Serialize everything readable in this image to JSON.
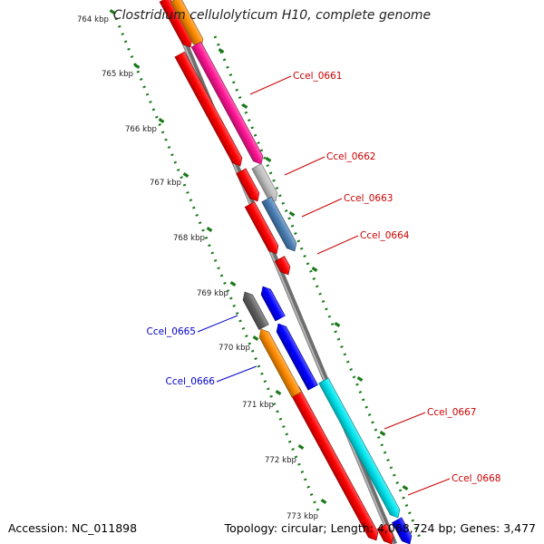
{
  "title": "Clostridium cellulolyticum H10, complete genome",
  "footer": {
    "accession": "Accession: NC_011898",
    "summary": "Topology: circular; Length: 4,068,724 bp; Genes: 3,477"
  },
  "colors": {
    "backbone": "#8a8a8a",
    "tick": "#1a7a1a",
    "label_forward": "#cc0000",
    "label_reverse": "#0000cc"
  },
  "ruler_labels": [
    "764 kbp",
    "765 kbp",
    "766 kbp",
    "767 kbp",
    "768 kbp",
    "769 kbp",
    "770 kbp",
    "771 kbp",
    "772 kbp",
    "773 kbp"
  ],
  "genes": [
    {
      "name": "Ccel_0661",
      "strand": "forward",
      "color": "#ff1493"
    },
    {
      "name": "Ccel_0662",
      "strand": "forward",
      "color": "#c0c0c0"
    },
    {
      "name": "Ccel_0663",
      "strand": "forward",
      "color": "#4a7fb5"
    },
    {
      "name": "Ccel_0664",
      "strand": "forward",
      "color": "#ff0000"
    },
    {
      "name": "Ccel_0665",
      "strand": "reverse",
      "color": "#606060"
    },
    {
      "name": "Ccel_0666",
      "strand": "reverse",
      "color": "#ff8c00"
    },
    {
      "name": "Ccel_0667",
      "strand": "forward",
      "color": "#00e5ee"
    },
    {
      "name": "Ccel_0668",
      "strand": "forward",
      "color": "#ff0000"
    }
  ]
}
